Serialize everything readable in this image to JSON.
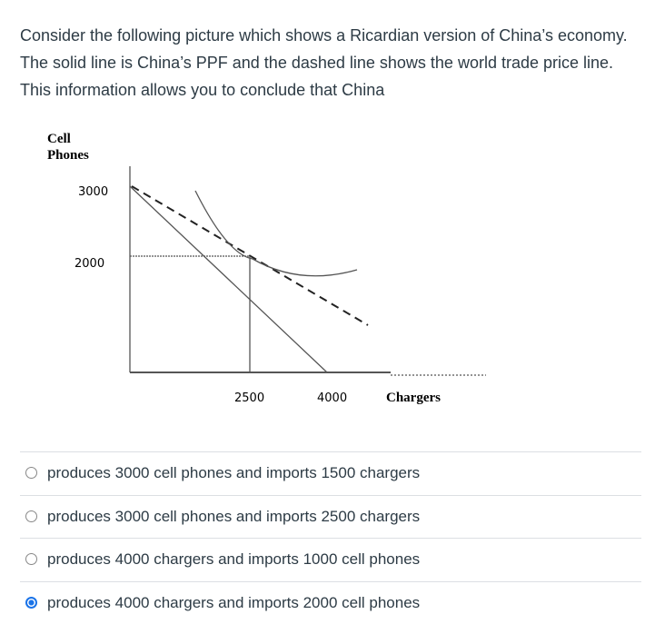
{
  "question": {
    "text": "Consider the following picture which shows a Ricardian version of China’s economy.  The solid line is China’s PPF and the dashed line shows the world trade price line.  This information allows you to conclude that China"
  },
  "figure": {
    "y_axis_label": [
      "Cell",
      "Phones"
    ],
    "y_labels": [
      "3000",
      "2000"
    ],
    "x_labels": [
      "2500",
      "4000"
    ],
    "x_axis_label": "Chargers"
  },
  "options": {
    "items": [
      "produces 3000 cell phones and imports 1500 chargers",
      "produces 3000 cell phones and imports 2500 chargers",
      "produces 4000 chargers and imports 1000 cell phones",
      "produces 4000 chargers and imports 2000 cell phones"
    ],
    "selected": 3
  }
}
